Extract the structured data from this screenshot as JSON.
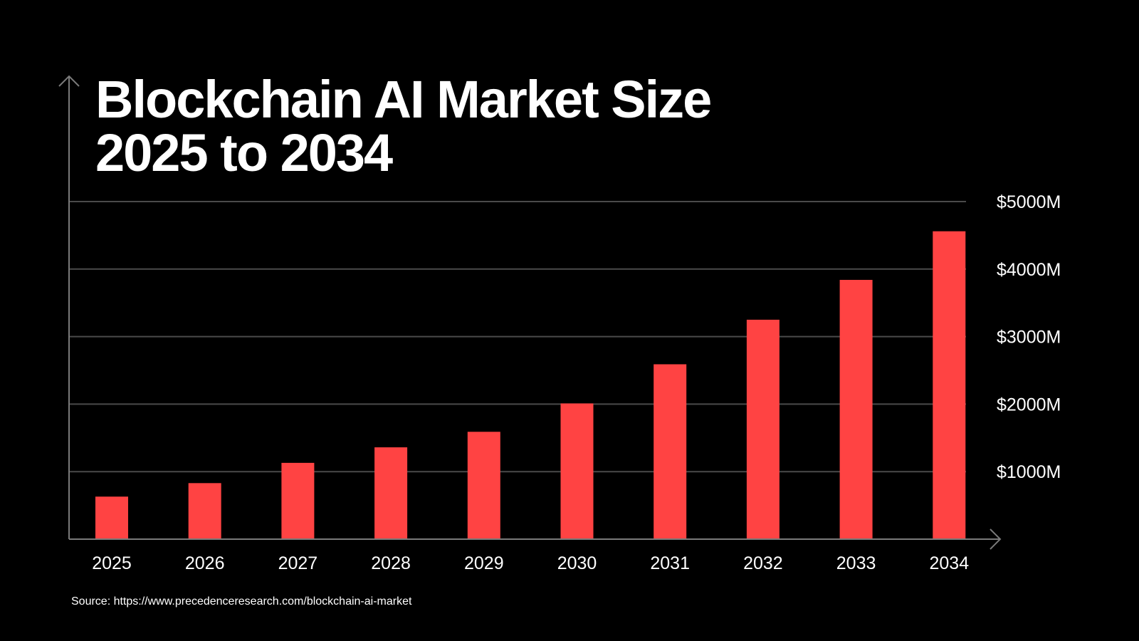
{
  "chart_data": {
    "type": "bar",
    "title_lines": [
      "Blockchain AI Market Size",
      "2025 to 2034"
    ],
    "categories": [
      "2025",
      "2026",
      "2027",
      "2028",
      "2029",
      "2030",
      "2031",
      "2032",
      "2033",
      "2034"
    ],
    "values": [
      630,
      830,
      1130,
      1360,
      1590,
      2010,
      2590,
      3250,
      3840,
      4560
    ],
    "ylim": [
      0,
      5000
    ],
    "y_ticks": [
      1000,
      2000,
      3000,
      4000,
      5000
    ],
    "y_tick_labels": [
      "$1000M",
      "$2000M",
      "$3000M",
      "$4000M",
      "$5000M"
    ],
    "y_axis_side": "right",
    "grid": true,
    "xlabel": "",
    "ylabel": "",
    "source": "Source: https://www.precedenceresearch.com/blockchain-ai-market",
    "colors": {
      "background": "#000000",
      "bar": "#ff4343",
      "text": "#ffffff",
      "grid": "#4a4a4a",
      "axis": "#7a7a7a"
    }
  }
}
